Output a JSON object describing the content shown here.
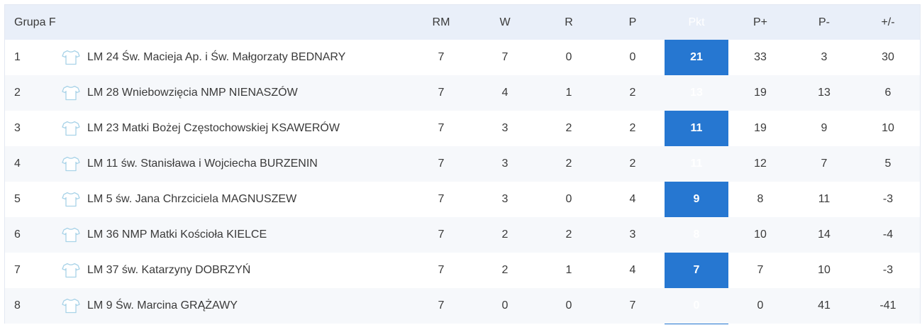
{
  "table": {
    "group_label": "Grupa F",
    "columns": {
      "rm": "RM",
      "w": "W",
      "r": "R",
      "p": "P",
      "pkt": "Pkt",
      "pplus": "P+",
      "pminus": "P-",
      "diff": "+/-"
    },
    "accent_color": "#2677d1",
    "header_bg": "#e9eff9",
    "row_alt_bg": "#f6f8fb",
    "team_icon": "shirt-icon",
    "rows": [
      {
        "pos": "1",
        "team": "LM 24 Św. Macieja Ap. i Św. Małgorzaty BEDNARY",
        "rm": "7",
        "w": "7",
        "r": "0",
        "p": "0",
        "pkt": "21",
        "pplus": "33",
        "pminus": "3",
        "diff": "30"
      },
      {
        "pos": "2",
        "team": "LM 28 Wniebowzięcia NMP NIENASZÓW",
        "rm": "7",
        "w": "4",
        "r": "1",
        "p": "2",
        "pkt": "13",
        "pplus": "19",
        "pminus": "13",
        "diff": "6"
      },
      {
        "pos": "3",
        "team": "LM 23 Matki Bożej Częstochowskiej KSAWERÓW",
        "rm": "7",
        "w": "3",
        "r": "2",
        "p": "2",
        "pkt": "11",
        "pplus": "19",
        "pminus": "9",
        "diff": "10"
      },
      {
        "pos": "4",
        "team": "LM 11 św. Stanisława i Wojciecha BURZENIN",
        "rm": "7",
        "w": "3",
        "r": "2",
        "p": "2",
        "pkt": "11",
        "pplus": "12",
        "pminus": "7",
        "diff": "5"
      },
      {
        "pos": "5",
        "team": "LM 5 św. Jana Chrzciciela MAGNUSZEW",
        "rm": "7",
        "w": "3",
        "r": "0",
        "p": "4",
        "pkt": "9",
        "pplus": "8",
        "pminus": "11",
        "diff": "-3"
      },
      {
        "pos": "6",
        "team": "LM 36 NMP Matki Kościoła KIELCE",
        "rm": "7",
        "w": "2",
        "r": "2",
        "p": "3",
        "pkt": "8",
        "pplus": "10",
        "pminus": "14",
        "diff": "-4"
      },
      {
        "pos": "7",
        "team": "LM 37 św. Katarzyny DOBRZYŃ",
        "rm": "7",
        "w": "2",
        "r": "1",
        "p": "4",
        "pkt": "7",
        "pplus": "7",
        "pminus": "10",
        "diff": "-3"
      },
      {
        "pos": "8",
        "team": "LM 9 Św. Marcina GRĄŻAWY",
        "rm": "7",
        "w": "0",
        "r": "0",
        "p": "7",
        "pkt": "0",
        "pplus": "0",
        "pminus": "41",
        "diff": "-41"
      }
    ]
  }
}
